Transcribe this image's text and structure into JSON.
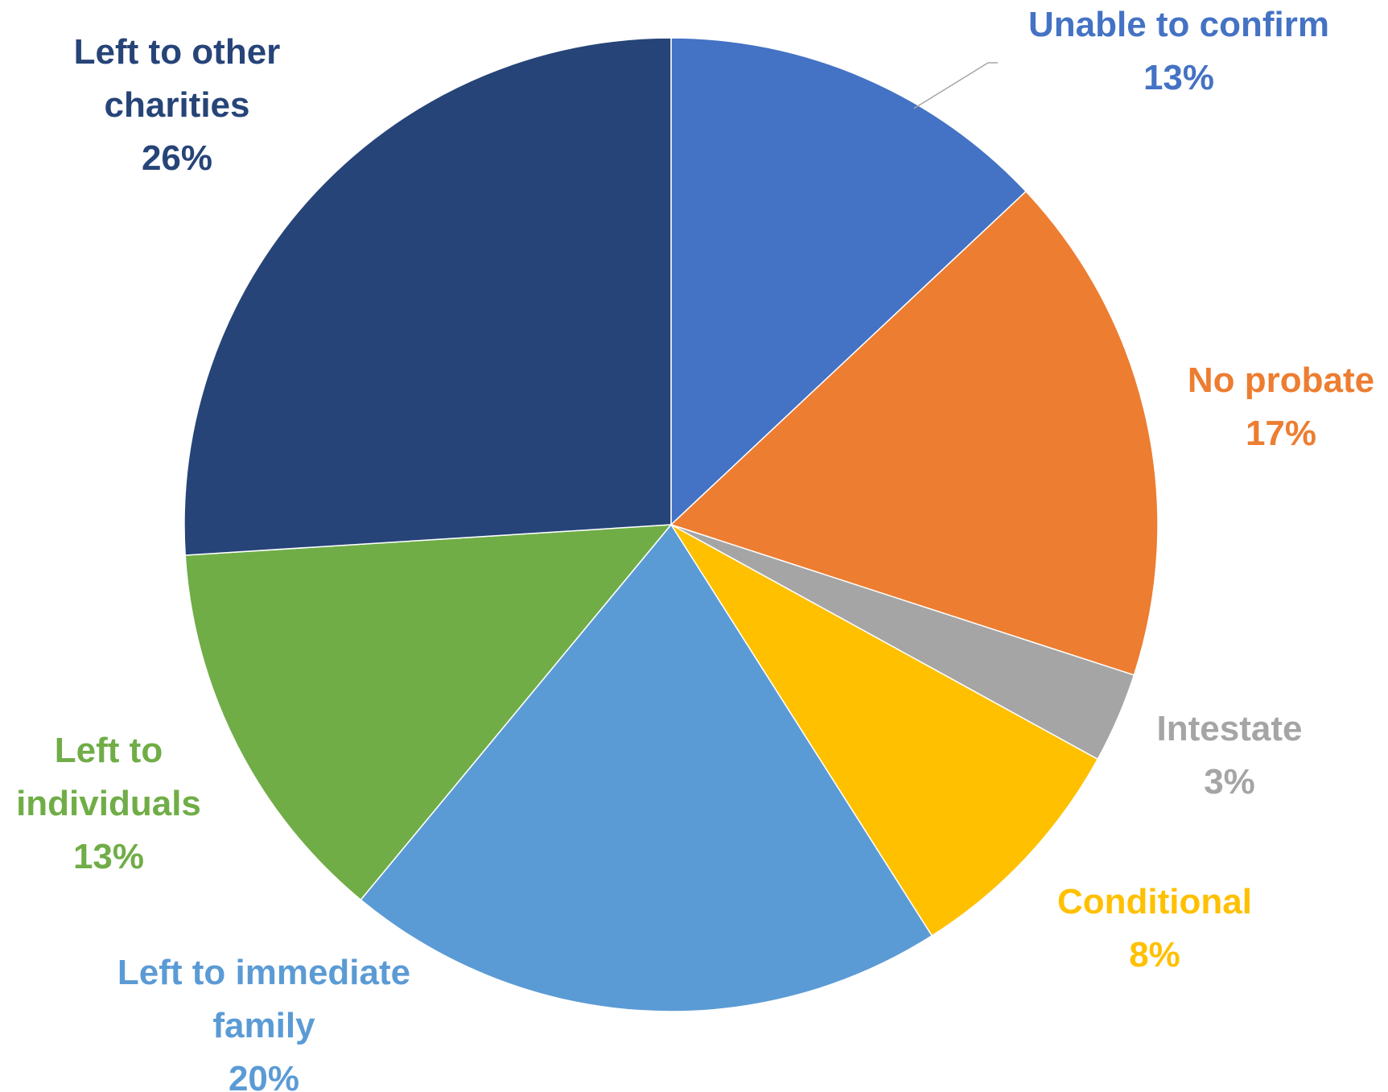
{
  "chart_data": {
    "type": "pie",
    "title": "",
    "slices": [
      {
        "label_lines": [
          "Unable to confirm"
        ],
        "value": 13,
        "value_label": "13%",
        "color": "#4472C4"
      },
      {
        "label_lines": [
          "No probate"
        ],
        "value": 17,
        "value_label": "17%",
        "color": "#ED7D31"
      },
      {
        "label_lines": [
          "Intestate"
        ],
        "value": 3,
        "value_label": "3%",
        "color": "#A5A5A5"
      },
      {
        "label_lines": [
          "Conditional"
        ],
        "value": 8,
        "value_label": "8%",
        "color": "#FFC000"
      },
      {
        "label_lines": [
          "Left to immediate",
          "family"
        ],
        "value": 20,
        "value_label": "20%",
        "color": "#5B9BD5"
      },
      {
        "label_lines": [
          "Left to",
          "individuals"
        ],
        "value": 13,
        "value_label": "13%",
        "color": "#70AD47"
      },
      {
        "label_lines": [
          "Left to other",
          "charities"
        ],
        "value": 26,
        "value_label": "26%",
        "color": "#264478"
      }
    ],
    "start_angle": "12 o'clock",
    "direction": "clockwise",
    "legend": "none",
    "data_labels": "outside, category and percentage"
  }
}
